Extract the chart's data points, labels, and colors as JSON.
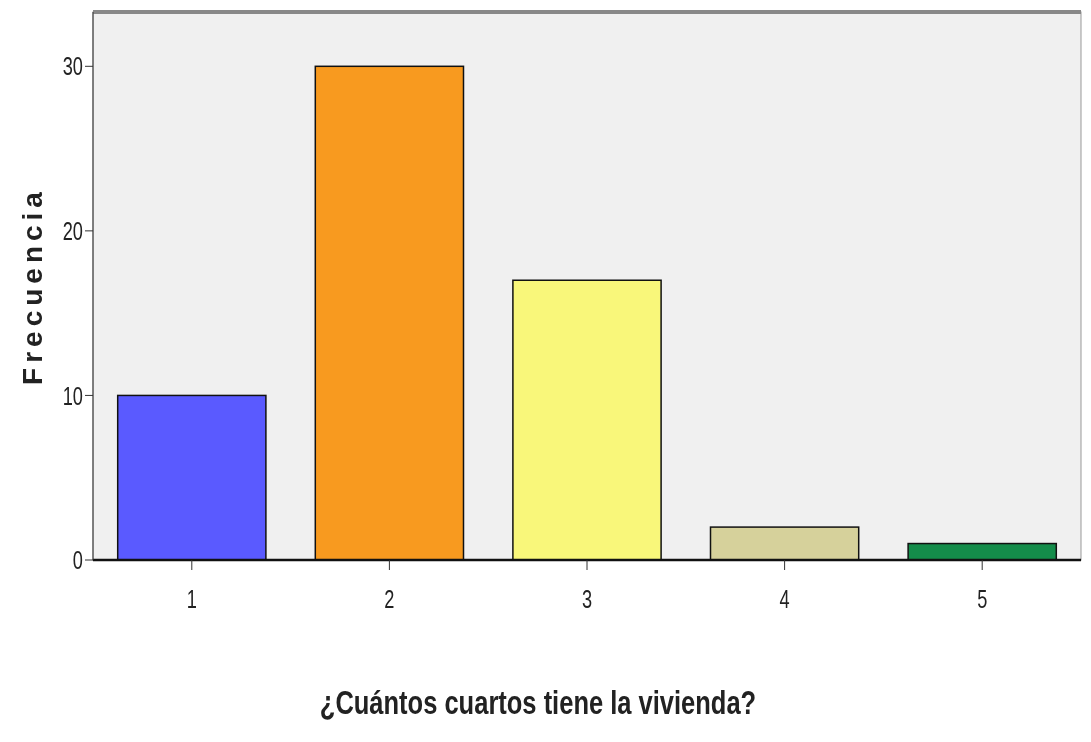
{
  "chart_data": {
    "type": "bar",
    "xlabel": "¿Cuántos cuartos tiene la vivienda?",
    "ylabel": "Frecuencia",
    "categories": [
      "1",
      "2",
      "3",
      "4",
      "5"
    ],
    "values": [
      10,
      30,
      17,
      2,
      1
    ],
    "colors": [
      "#5a5aff",
      "#f89a1f",
      "#f9f77a",
      "#d6d19b",
      "#148c4a"
    ],
    "ylim": [
      0,
      33.3
    ],
    "yticks": [
      0,
      10,
      20,
      30
    ]
  }
}
